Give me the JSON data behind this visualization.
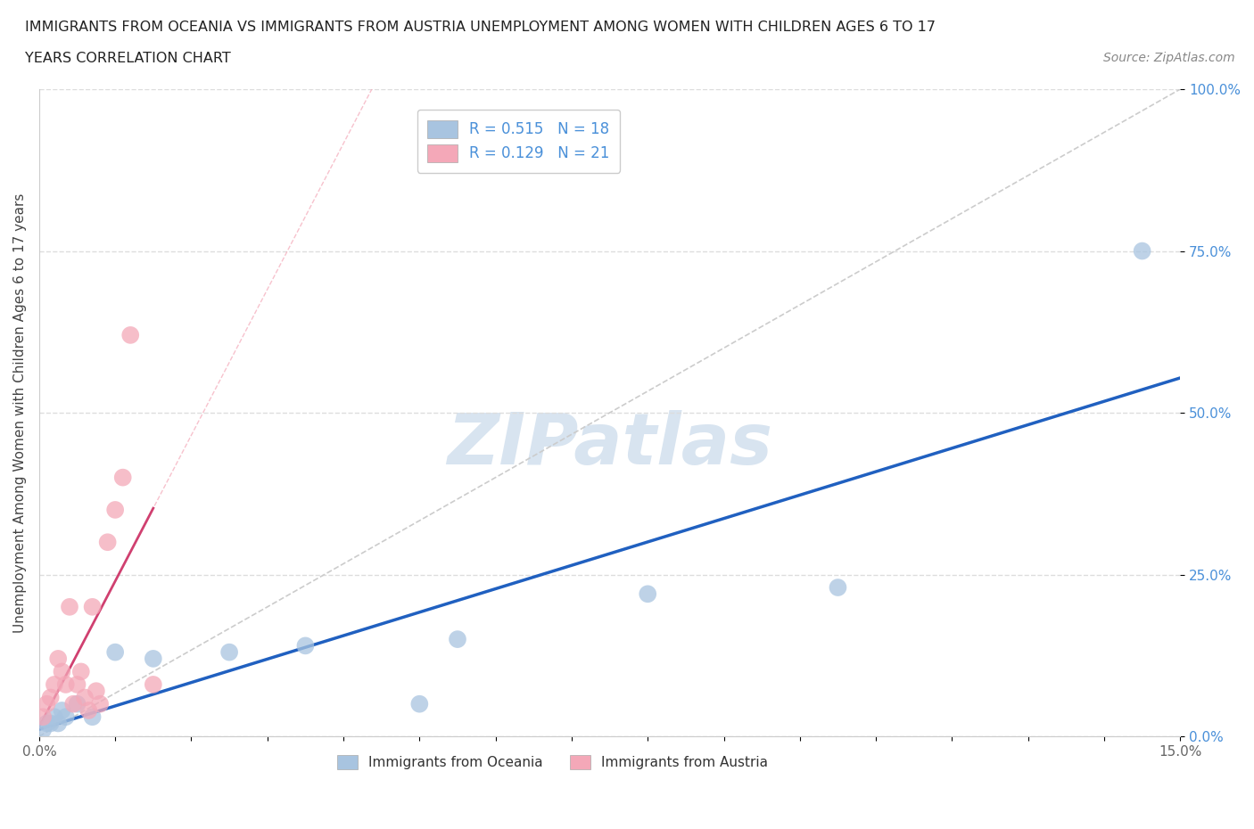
{
  "title_line1": "IMMIGRANTS FROM OCEANIA VS IMMIGRANTS FROM AUSTRIA UNEMPLOYMENT AMONG WOMEN WITH CHILDREN AGES 6 TO 17",
  "title_line2": "YEARS CORRELATION CHART",
  "source": "Source: ZipAtlas.com",
  "ylabel": "Unemployment Among Women with Children Ages 6 to 17 years",
  "xlim": [
    0,
    15
  ],
  "ylim": [
    0,
    100
  ],
  "oceania_R": 0.515,
  "oceania_N": 18,
  "austria_R": 0.129,
  "austria_N": 21,
  "oceania_color": "#a8c4e0",
  "austria_color": "#f4a8b8",
  "oceania_line_color": "#2060c0",
  "austria_line_color": "#d04070",
  "ref_line_color": "#cccccc",
  "watermark": "ZIPatlas",
  "watermark_color": "#d8e4f0",
  "legend_label_oceania": "Immigrants from Oceania",
  "legend_label_austria": "Immigrants from Austria",
  "oceania_x": [
    0.05,
    0.1,
    0.15,
    0.2,
    0.25,
    0.3,
    0.35,
    0.5,
    0.7,
    1.0,
    1.5,
    2.5,
    3.5,
    5.0,
    5.5,
    8.0,
    10.5,
    14.5
  ],
  "oceania_y": [
    1,
    2,
    2,
    3,
    2,
    4,
    3,
    5,
    3,
    13,
    12,
    13,
    14,
    5,
    15,
    22,
    23,
    75
  ],
  "austria_x": [
    0.05,
    0.1,
    0.15,
    0.2,
    0.25,
    0.3,
    0.35,
    0.4,
    0.45,
    0.5,
    0.55,
    0.6,
    0.65,
    0.7,
    0.75,
    0.8,
    0.9,
    1.0,
    1.1,
    1.2,
    1.5
  ],
  "austria_y": [
    3,
    5,
    6,
    8,
    12,
    10,
    8,
    20,
    5,
    8,
    10,
    6,
    4,
    20,
    7,
    5,
    30,
    35,
    40,
    62,
    8
  ],
  "background_color": "#ffffff",
  "grid_color": "#dddddd",
  "ytick_color": "#4a90d9"
}
